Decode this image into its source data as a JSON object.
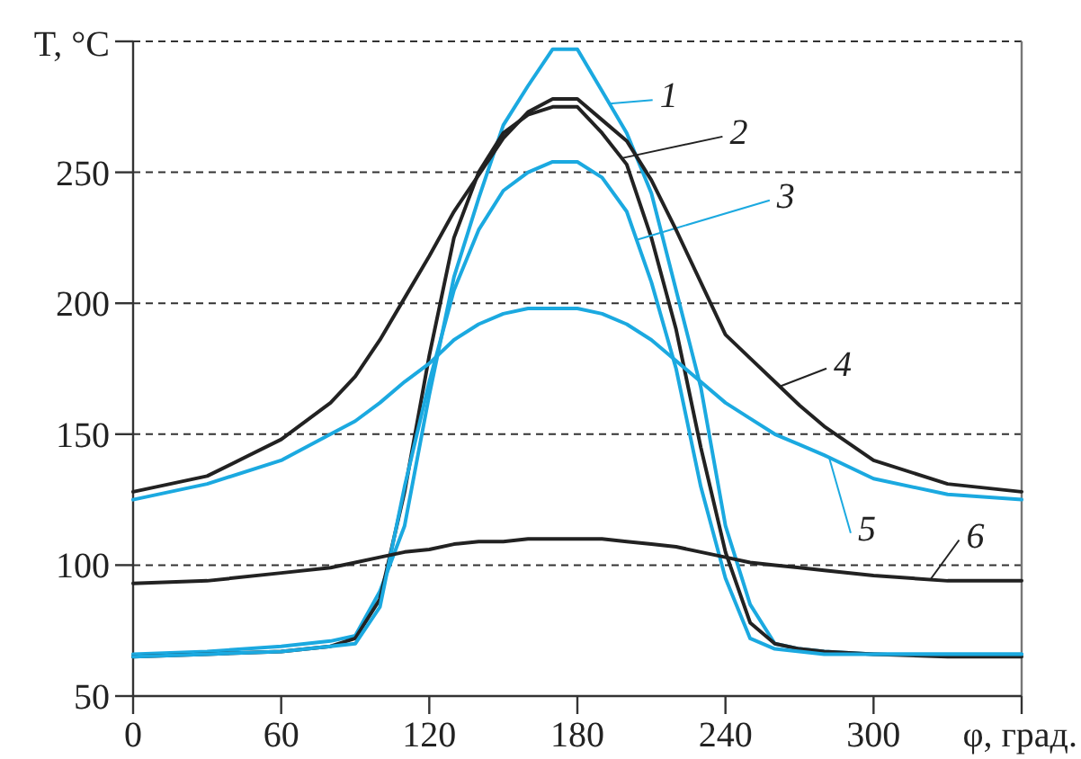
{
  "chart_data": {
    "type": "line",
    "ylabel": "T, °C",
    "xlabel": "φ, град.",
    "xlim": [
      0,
      360
    ],
    "ylim": [
      50,
      300
    ],
    "xticks": [
      0,
      60,
      120,
      180,
      240,
      300,
      {
        "value": 360,
        "label": null
      }
    ],
    "yticks": [
      50,
      100,
      150,
      200,
      250,
      {
        "value": 300,
        "label": null
      }
    ],
    "grid": "y",
    "legend": "right",
    "marker": "none",
    "line_style": "solid",
    "x": [
      0,
      30,
      60,
      80,
      90,
      100,
      110,
      120,
      130,
      140,
      150,
      160,
      170,
      180,
      190,
      200,
      210,
      220,
      230,
      240,
      250,
      260,
      270,
      280,
      300,
      330,
      360
    ],
    "series": [
      {
        "name": "1",
        "color": "#1ba9e0",
        "values": [
          66,
          67,
          69,
          71,
          73,
          90,
          115,
          165,
          210,
          240,
          268,
          283,
          297,
          297,
          281,
          265,
          242,
          205,
          168,
          115,
          85,
          70,
          68,
          67,
          66,
          66,
          66
        ]
      },
      {
        "name": "2",
        "color": "#222222",
        "values": [
          65,
          66,
          67,
          69,
          72,
          87,
          128,
          180,
          225,
          250,
          265,
          272,
          275,
          275,
          265,
          253,
          225,
          190,
          145,
          105,
          78,
          70,
          68,
          67,
          66,
          65,
          65
        ]
      },
      {
        "name": "3",
        "color": "#1ba9e0",
        "values": [
          65,
          66,
          67,
          69,
          70,
          84,
          130,
          170,
          205,
          228,
          243,
          250,
          254,
          254,
          248,
          235,
          208,
          175,
          130,
          95,
          72,
          68,
          67,
          66,
          66,
          66,
          66
        ]
      },
      {
        "name": "4",
        "color": "#222222",
        "values": [
          128,
          134,
          148,
          162,
          172,
          186,
          202,
          218,
          235,
          249,
          263,
          273,
          278,
          278,
          270,
          262,
          247,
          228,
          208,
          188,
          179,
          170,
          161,
          153,
          140,
          131,
          128
        ]
      },
      {
        "name": "5",
        "color": "#1ba9e0",
        "values": [
          125,
          131,
          140,
          150,
          155,
          162,
          170,
          177,
          186,
          192,
          196,
          198,
          198,
          198,
          196,
          192,
          186,
          178,
          170,
          162,
          156,
          150,
          146,
          142,
          133,
          127,
          125
        ]
      },
      {
        "name": "6",
        "color": "#222222",
        "values": [
          93,
          94,
          97,
          99,
          101,
          103,
          105,
          106,
          108,
          109,
          109,
          110,
          110,
          110,
          110,
          109,
          108,
          107,
          105,
          103,
          101,
          100,
          99,
          98,
          96,
          94,
          94
        ]
      }
    ]
  }
}
